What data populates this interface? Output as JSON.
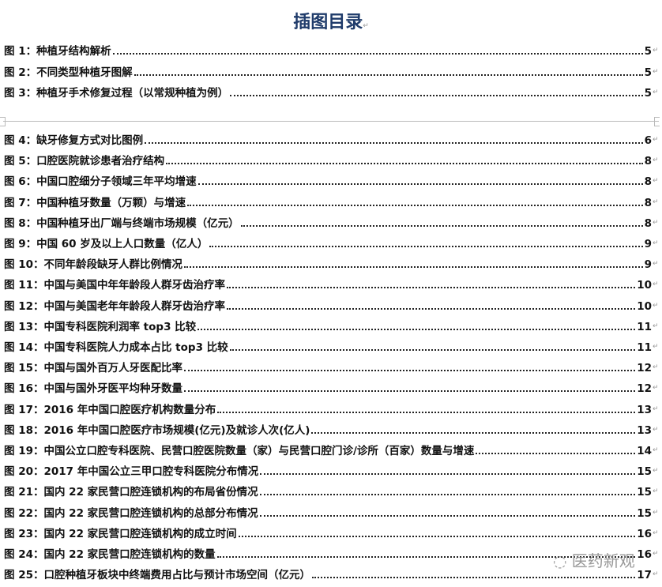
{
  "title": "插图目录",
  "paragraph_mark": "↵",
  "watermark": "医药新观",
  "entries": [
    {
      "label": "图 1：种植牙结构解析",
      "page": "5"
    },
    {
      "label": "图 2：不同类型种植牙图解",
      "page": "5"
    },
    {
      "label": "图 3：种植牙手术修复过程（以常规种植为例）",
      "page": "5"
    },
    {
      "label": "图 4：缺牙修复方式对比图例",
      "page": "6"
    },
    {
      "label": "图 5：口腔医院就诊患者治疗结构",
      "page": "8"
    },
    {
      "label": "图 6：中国口腔细分子领域三年平均增速",
      "page": "8"
    },
    {
      "label": "图 7：中国种植牙数量（万颗）与增速",
      "page": "8"
    },
    {
      "label": "图 8：中国种植牙出厂端与终端市场规模（亿元）",
      "page": "8"
    },
    {
      "label": "图 9：中国 60 岁及以上人口数量（亿人）",
      "page": "9"
    },
    {
      "label": "图 10：不同年龄段缺牙人群比例情况",
      "page": "9"
    },
    {
      "label": "图 11：中国与美国中年年龄段人群牙齿治疗率",
      "page": "10"
    },
    {
      "label": "图 12：中国与美国老年年龄段人群牙齿治疗率",
      "page": "10"
    },
    {
      "label": "图 13：中国专科医院利润率 top3 比较",
      "page": "11"
    },
    {
      "label": "图 14：中国专科医院人力成本占比 top3 比较",
      "page": "11"
    },
    {
      "label": "图 15：中国与国外百万人牙医配比率",
      "page": "12"
    },
    {
      "label": "图 16：中国与国外牙医平均种牙数量",
      "page": "12"
    },
    {
      "label": "图 17：2016 年中国口腔医疗机构数量分布",
      "page": "13"
    },
    {
      "label": "图 18：2016 年中国口腔医疗市场规模(亿元)及就诊人次(亿人)",
      "page": "13"
    },
    {
      "label": "图 19：中国公立口腔专科医院、民营口腔医院数量（家）与民营口腔门诊/诊所（百家）数量与增速",
      "page": "14"
    },
    {
      "label": "图 20：2017 年中国公立三甲口腔专科医院分布情况",
      "page": "15"
    },
    {
      "label": "图 21：国内 22 家民营口腔连锁机构的布局省份情况",
      "page": "15"
    },
    {
      "label": "图 22：国内 22 家民营口腔连锁机构的总部分布情况",
      "page": "15"
    },
    {
      "label": "图 23：国内 22 家民营口腔连锁机构的成立时间",
      "page": "16"
    },
    {
      "label": "图 24：国内 22 家民营口腔连锁机构的数量",
      "page": "16"
    },
    {
      "label": "图 25：口腔种植牙板块中终端费用占比与预计市场空间（亿元）",
      "page": "17"
    }
  ]
}
